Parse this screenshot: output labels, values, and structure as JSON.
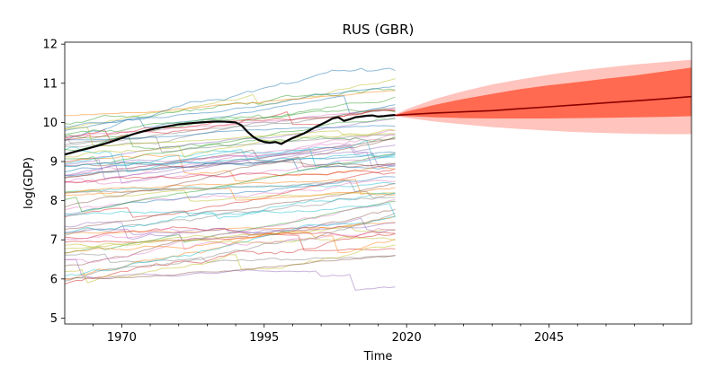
{
  "chart_data": {
    "type": "line",
    "title": "RUS (GBR)",
    "xlabel": "Time",
    "ylabel": "log(GDP)",
    "xlim": [
      1960,
      2070
    ],
    "ylim": [
      4.85,
      12.05
    ],
    "x_ticks": [
      1970,
      1995,
      2020,
      2045
    ],
    "y_ticks": [
      5,
      6,
      7,
      8,
      9,
      10,
      11,
      12
    ],
    "grid": false,
    "background_series": {
      "description_count": 70,
      "x_range": [
        1960,
        2018
      ],
      "value_range": [
        5.7,
        11.4
      ],
      "colors": [
        "#1f77b4",
        "#ff7f0e",
        "#2ca02c",
        "#d62728",
        "#9467bd",
        "#8c564b",
        "#e377c2",
        "#7f7f7f",
        "#bcbd22",
        "#17becf"
      ]
    },
    "highlight_series": {
      "color": "#000000",
      "x": [
        1960,
        1962,
        1964,
        1966,
        1968,
        1970,
        1972,
        1974,
        1976,
        1978,
        1980,
        1982,
        1984,
        1986,
        1988,
        1990,
        1991,
        1992,
        1993,
        1994,
        1995,
        1996,
        1997,
        1998,
        1999,
        2000,
        2001,
        2002,
        2003,
        2004,
        2005,
        2006,
        2007,
        2008,
        2009,
        2010,
        2011,
        2012,
        2013,
        2014,
        2015,
        2016,
        2017,
        2018
      ],
      "values": [
        9.18,
        9.26,
        9.33,
        9.41,
        9.5,
        9.6,
        9.7,
        9.78,
        9.85,
        9.9,
        9.95,
        9.98,
        10.0,
        10.02,
        10.02,
        10.0,
        9.93,
        9.77,
        9.64,
        9.55,
        9.5,
        9.48,
        9.5,
        9.45,
        9.53,
        9.6,
        9.66,
        9.72,
        9.8,
        9.88,
        9.95,
        10.02,
        10.1,
        10.13,
        10.04,
        10.08,
        10.13,
        10.15,
        10.17,
        10.18,
        10.15,
        10.16,
        10.18,
        10.19
      ]
    },
    "forecast": {
      "x": [
        2018,
        2020,
        2025,
        2030,
        2035,
        2040,
        2045,
        2050,
        2055,
        2060,
        2065,
        2070
      ],
      "median": [
        10.18,
        10.2,
        10.24,
        10.27,
        10.3,
        10.35,
        10.4,
        10.45,
        10.5,
        10.55,
        10.6,
        10.66
      ],
      "inner_lower": [
        10.17,
        10.16,
        10.13,
        10.11,
        10.1,
        10.1,
        10.1,
        10.11,
        10.12,
        10.13,
        10.14,
        10.16
      ],
      "inner_upper": [
        10.19,
        10.28,
        10.45,
        10.6,
        10.73,
        10.85,
        10.95,
        11.03,
        11.12,
        11.2,
        11.3,
        11.4
      ],
      "outer_lower": [
        10.16,
        10.12,
        10.02,
        9.95,
        9.88,
        9.83,
        9.79,
        9.75,
        9.73,
        9.71,
        9.7,
        9.7
      ],
      "outer_upper": [
        10.2,
        10.34,
        10.6,
        10.8,
        10.97,
        11.1,
        11.22,
        11.32,
        11.4,
        11.48,
        11.54,
        11.6
      ],
      "median_color": "#8b0000",
      "inner_color": "#ff6a50",
      "outer_color": "#ffc4bd"
    }
  }
}
